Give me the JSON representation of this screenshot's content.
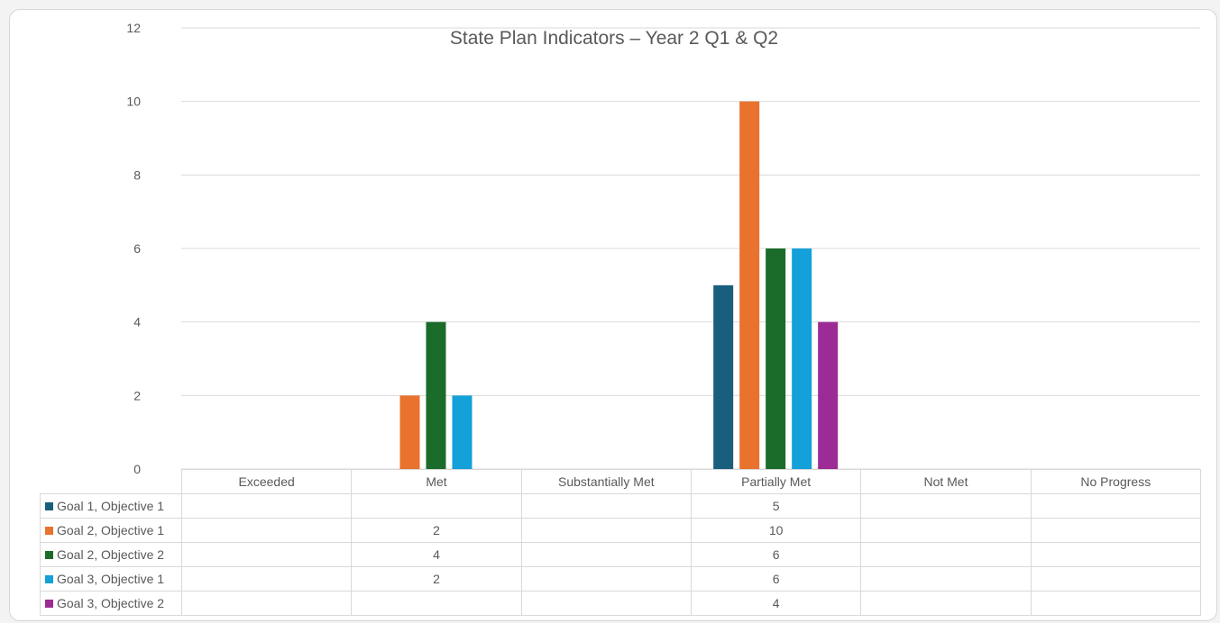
{
  "chart_data": {
    "type": "bar",
    "title": "State Plan Indicators – Year 2 Q1 & Q2",
    "categories": [
      "Exceeded",
      "Met",
      "Substantially Met",
      "Partially Met",
      "Not Met",
      "No Progress"
    ],
    "ylim": [
      0,
      12
    ],
    "yticks": [
      0,
      2,
      4,
      6,
      8,
      10,
      12
    ],
    "grid": true,
    "legend": "data table below the chart",
    "series": [
      {
        "name": "Goal 1, Objective 1",
        "color": "#1a5e7e",
        "values": [
          null,
          null,
          null,
          5,
          null,
          null
        ]
      },
      {
        "name": "Goal 2, Objective 1",
        "color": "#e8722e",
        "values": [
          null,
          2,
          null,
          10,
          null,
          null
        ]
      },
      {
        "name": "Goal 2, Objective 2",
        "color": "#1b6b2a",
        "values": [
          null,
          4,
          null,
          6,
          null,
          null
        ]
      },
      {
        "name": "Goal 3, Objective 1",
        "color": "#14a0d9",
        "values": [
          null,
          2,
          null,
          6,
          null,
          null
        ]
      },
      {
        "name": "Goal 3, Objective 2",
        "color": "#9c2b96",
        "values": [
          null,
          null,
          null,
          4,
          null,
          null
        ]
      }
    ]
  }
}
